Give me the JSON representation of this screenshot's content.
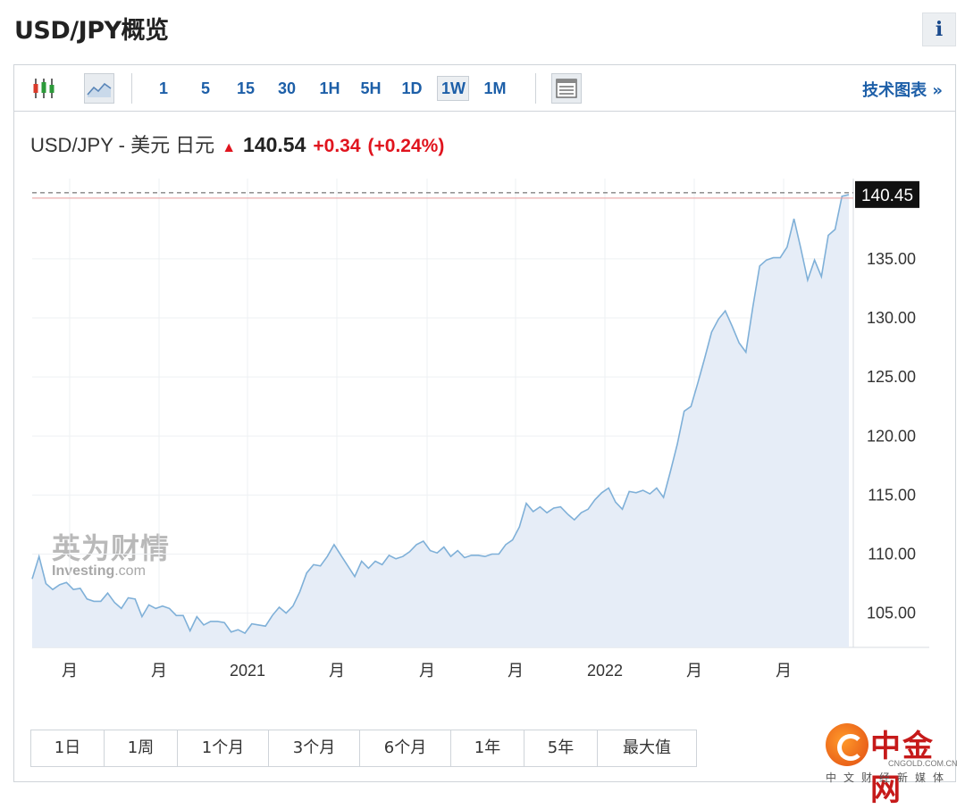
{
  "page": {
    "title": "USD/JPY概览",
    "info_label": "i"
  },
  "toolbar": {
    "chart_type_icons": [
      "candlestick-icon",
      "area-chart-icon"
    ],
    "intervals": [
      "1",
      "5",
      "15",
      "30",
      "1H",
      "5H",
      "1D",
      "1W",
      "1M"
    ],
    "active_interval": "1W",
    "table_icon": "table-view-icon",
    "tech_chart_link": "技术图表 »"
  },
  "quote": {
    "name": "USD/JPY - 美元 日元",
    "direction_icon": "up-arrow-icon",
    "price": "140.54",
    "change": "+0.34",
    "change_pct": "(+0.24%)"
  },
  "colors": {
    "line": "#7fb0d8",
    "area": "#e6edf7",
    "up": "#e0141e",
    "link": "#1d5fa8",
    "last_price_bg": "#111111"
  },
  "chart_data": {
    "type": "area",
    "title": "",
    "xlabel": "",
    "ylabel": "",
    "ylim": [
      102.1,
      141.8
    ],
    "yticks": [
      "105.00",
      "110.00",
      "115.00",
      "120.00",
      "125.00",
      "130.00",
      "135.00"
    ],
    "xticks": [
      "月",
      "月",
      "2021",
      "月",
      "月",
      "月",
      "2022",
      "月",
      "月"
    ],
    "last_price": "140.45",
    "grid": true,
    "series": [
      {
        "values": [
          107.9,
          109.8,
          107.5,
          107.0,
          107.4,
          107.6,
          107.0,
          107.1,
          106.2,
          106.0,
          106.0,
          106.7,
          105.9,
          105.4,
          106.3,
          106.2,
          104.7,
          105.7,
          105.4,
          105.6,
          105.4,
          104.8,
          104.8,
          103.5,
          104.7,
          104.0,
          104.3,
          104.3,
          104.2,
          103.4,
          103.6,
          103.3,
          104.1,
          104.0,
          103.9,
          104.8,
          105.5,
          105.0,
          105.6,
          106.8,
          108.4,
          109.1,
          109.0,
          109.8,
          110.8,
          109.9,
          109.0,
          108.1,
          109.4,
          108.8,
          109.4,
          109.1,
          109.9,
          109.6,
          109.8,
          110.2,
          110.8,
          111.1,
          110.3,
          110.1,
          110.6,
          109.8,
          110.3,
          109.7,
          109.9,
          109.9,
          109.8,
          110.0,
          110.0,
          110.8,
          111.2,
          112.3,
          114.3,
          113.6,
          114.0,
          113.5,
          113.9,
          114.0,
          113.4,
          112.9,
          113.5,
          113.8,
          114.6,
          115.2,
          115.6,
          114.4,
          113.8,
          115.3,
          115.2,
          115.4,
          115.1,
          115.6,
          114.8,
          117.0,
          119.3,
          122.1,
          122.5,
          124.5,
          126.6,
          128.8,
          129.9,
          130.6,
          129.3,
          127.9,
          127.1,
          130.9,
          134.4,
          134.9,
          135.1,
          135.1,
          136.0,
          138.4,
          135.9,
          133.2,
          134.9,
          133.5,
          137.0,
          137.5,
          140.3,
          140.45
        ]
      }
    ]
  },
  "watermark": {
    "cn": "英为财情",
    "en": "Investing",
    "en_suffix": ".com"
  },
  "ranges": [
    "1日",
    "1周",
    "1个月",
    "3个月",
    "6个月",
    "1年",
    "5年",
    "最大值"
  ],
  "logo": {
    "name": "中金网",
    "url": "CNGOLD.COM.CN",
    "tagline": "中文财经新媒体"
  }
}
